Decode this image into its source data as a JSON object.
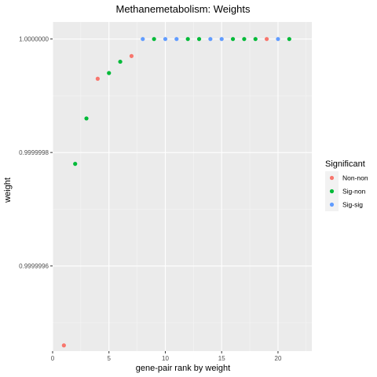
{
  "chart_data": {
    "type": "scatter",
    "title": "Methanemetabolism: Weights",
    "xlabel": "gene-pair rank by weight",
    "ylabel": "weight",
    "xlim": [
      0,
      23
    ],
    "ylim": [
      0.99999945,
      1.00000003
    ],
    "x_ticks": [
      0,
      5,
      10,
      15,
      20
    ],
    "y_ticks": [
      0.9999996,
      0.9999998,
      1.0
    ],
    "y_tick_labels": [
      "0.9999996",
      "0.9999998",
      "1.0000000"
    ],
    "grid": true,
    "legend": {
      "title": "Significant",
      "placement": "right",
      "entries": [
        {
          "name": "Non-non",
          "color": "#F8766D"
        },
        {
          "name": "Sig-non",
          "color": "#00BA38"
        },
        {
          "name": "Sig-sig",
          "color": "#619CFF"
        }
      ]
    },
    "series": [
      {
        "name": "Non-non",
        "color": "#F8766D",
        "points": [
          {
            "x": 1,
            "y": 0.99999946
          },
          {
            "x": 4,
            "y": 0.99999993
          },
          {
            "x": 7,
            "y": 0.99999997
          },
          {
            "x": 19,
            "y": 1.0
          }
        ]
      },
      {
        "name": "Sig-non",
        "color": "#00BA38",
        "points": [
          {
            "x": 2,
            "y": 0.99999978
          },
          {
            "x": 3,
            "y": 0.99999986
          },
          {
            "x": 5,
            "y": 0.99999994
          },
          {
            "x": 6,
            "y": 0.99999996
          },
          {
            "x": 9,
            "y": 1.0
          },
          {
            "x": 12,
            "y": 1.0
          },
          {
            "x": 13,
            "y": 1.0
          },
          {
            "x": 16,
            "y": 1.0
          },
          {
            "x": 17,
            "y": 1.0
          },
          {
            "x": 18,
            "y": 1.0
          },
          {
            "x": 21,
            "y": 1.0
          }
        ]
      },
      {
        "name": "Sig-sig",
        "color": "#619CFF",
        "points": [
          {
            "x": 8,
            "y": 1.0
          },
          {
            "x": 10,
            "y": 1.0
          },
          {
            "x": 11,
            "y": 1.0
          },
          {
            "x": 14,
            "y": 1.0
          },
          {
            "x": 15,
            "y": 1.0
          },
          {
            "x": 20,
            "y": 1.0
          }
        ]
      }
    ]
  }
}
